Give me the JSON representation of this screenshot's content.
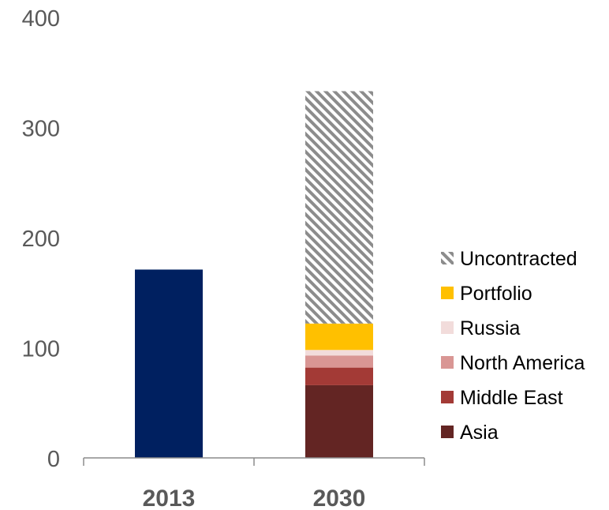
{
  "chart_data": {
    "type": "bar",
    "stacked": true,
    "categories": [
      "2013",
      "2030"
    ],
    "ylim": [
      0,
      400
    ],
    "yticks": [
      0,
      100,
      200,
      300,
      400
    ],
    "grid": false,
    "legend_placement": "right",
    "series": [
      {
        "name": "Asia",
        "values": [
          null,
          66
        ],
        "color": "#632523"
      },
      {
        "name": "Middle East",
        "values": [
          null,
          16
        ],
        "color": "#A33A36"
      },
      {
        "name": "North America",
        "values": [
          null,
          11
        ],
        "color": "#D99694"
      },
      {
        "name": "Russia",
        "values": [
          null,
          5
        ],
        "color": "#F2DCDB"
      },
      {
        "name": "Portfolio",
        "values": [
          null,
          24
        ],
        "color": "#FFC000"
      },
      {
        "name": "Uncontracted",
        "values": [
          null,
          211
        ],
        "color": "#A6A6A6",
        "pattern": "diagonal-hatch"
      }
    ],
    "totals_series": {
      "values": [
        171,
        null
      ],
      "color": "#002060"
    }
  }
}
